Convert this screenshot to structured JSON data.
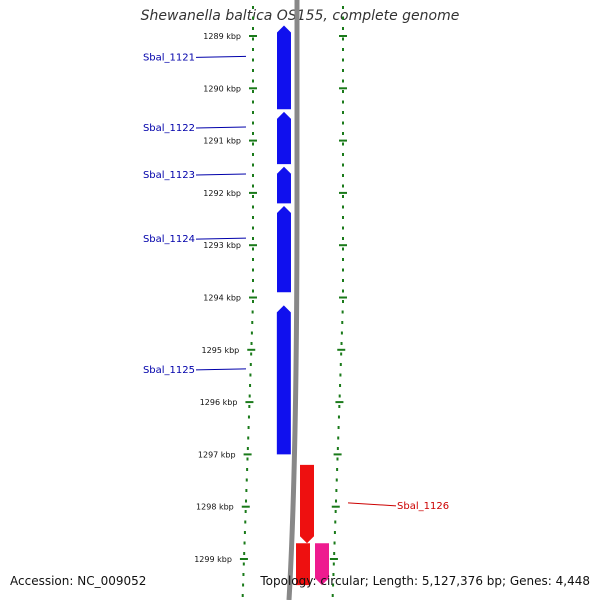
{
  "title": "Shewanella baltica OS155, complete genome",
  "footer": {
    "accession": "Accession: NC_009052",
    "summary": "Topology: circular; Length: 5,127,376 bp; Genes: 4,448"
  },
  "colors": {
    "forward_gene": "#1010ee",
    "reverse_gene": "#ee1010",
    "reverse_gene_alt": "#ee1b8f",
    "label_forward": "#0000aa",
    "label_reverse": "#cc0000",
    "ticks": "#1a7a1a",
    "backbone": "#888888"
  },
  "axis": {
    "unit": "kbp",
    "tick_labels": [
      "1289 kbp",
      "1290 kbp",
      "1291 kbp",
      "1292 kbp",
      "1293 kbp",
      "1294 kbp",
      "1295 kbp",
      "1296 kbp",
      "1297 kbp",
      "1298 kbp",
      "1299 kbp"
    ]
  },
  "genes": [
    {
      "label": "Sbal_1121",
      "strand": "+",
      "start_kbp": 1288.8,
      "end_kbp": 1290.4
    },
    {
      "label": "Sbal_1122",
      "strand": "+",
      "start_kbp": 1290.45,
      "end_kbp": 1291.45
    },
    {
      "label": "Sbal_1123",
      "strand": "+",
      "start_kbp": 1291.5,
      "end_kbp": 1292.2
    },
    {
      "label": "Sbal_1124",
      "strand": "+",
      "start_kbp": 1292.25,
      "end_kbp": 1293.9
    },
    {
      "label": "Sbal_1125",
      "strand": "+",
      "start_kbp": 1294.15,
      "end_kbp": 1297.0
    },
    {
      "label": "Sbal_1126",
      "strand": "-",
      "start_kbp": 1297.2,
      "end_kbp": 1298.7
    },
    {
      "label": "",
      "strand": "-",
      "start_kbp": 1298.7,
      "end_kbp": 1299.5
    },
    {
      "label": "",
      "strand": "-",
      "start_kbp": 1298.7,
      "end_kbp": 1299.5
    }
  ]
}
